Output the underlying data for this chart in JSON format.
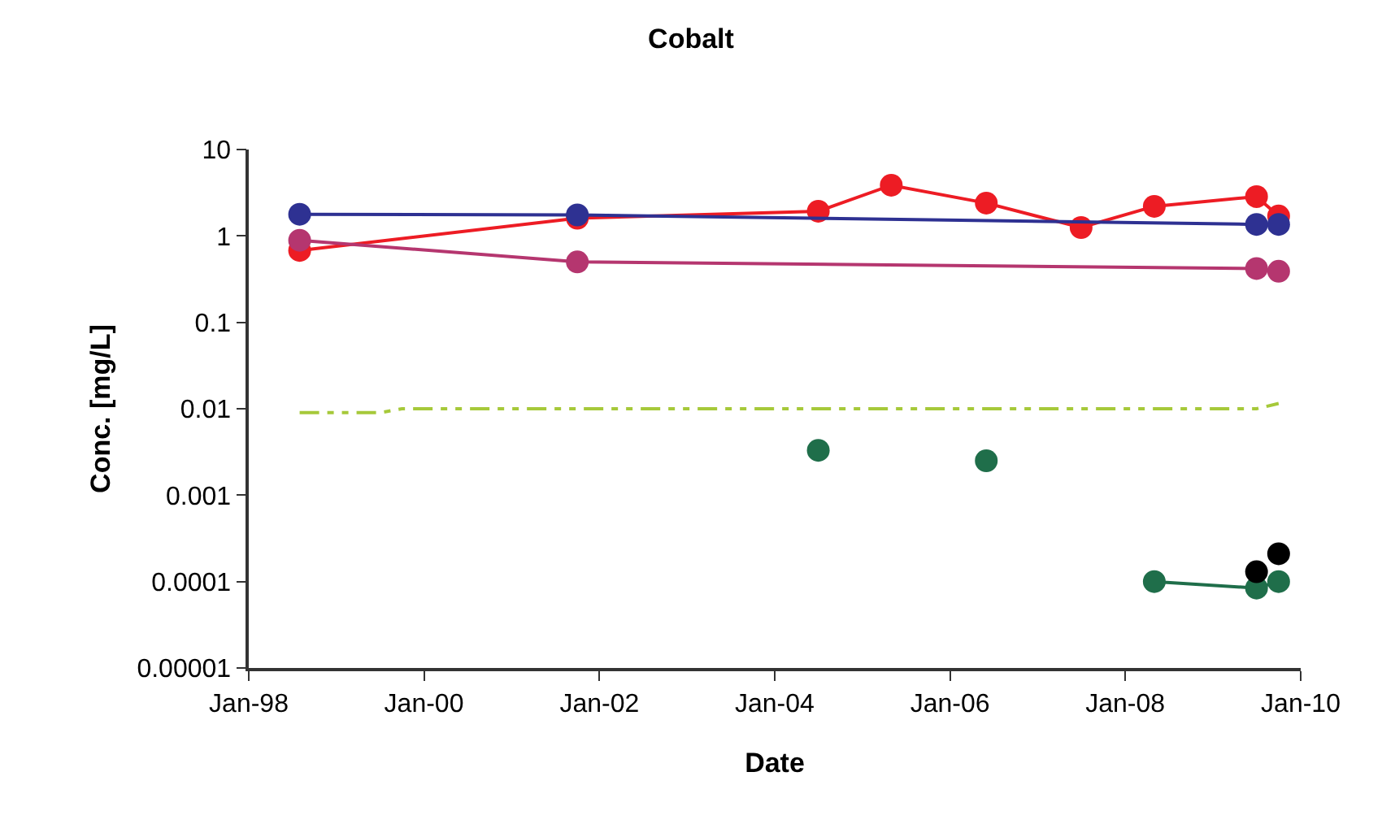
{
  "chart_data": {
    "type": "line",
    "title": "Cobalt",
    "xlabel": "Date",
    "ylabel": "Conc. [mg/L]",
    "log": "y",
    "marker": "circle",
    "xlim": [
      "1998-01-01",
      "2010-01-01"
    ],
    "xticks": [
      {
        "value": "1998-01-01",
        "label": "Jan-98"
      },
      {
        "value": "2000-01-01",
        "label": "Jan-00"
      },
      {
        "value": "2002-01-01",
        "label": "Jan-02"
      },
      {
        "value": "2004-01-01",
        "label": "Jan-04"
      },
      {
        "value": "2006-01-01",
        "label": "Jan-06"
      },
      {
        "value": "2008-01-01",
        "label": "Jan-08"
      },
      {
        "value": "2010-01-01",
        "label": "Jan-10"
      }
    ],
    "ylim": [
      1e-05,
      10
    ],
    "yticks": [
      {
        "value": 10,
        "label": "10"
      },
      {
        "value": 1,
        "label": "1"
      },
      {
        "value": 0.1,
        "label": "0.1"
      },
      {
        "value": 0.01,
        "label": "0.01"
      },
      {
        "value": 0.001,
        "label": "0.001"
      },
      {
        "value": 0.0001,
        "label": "0.0001"
      },
      {
        "value": 1e-05,
        "label": "0.00001"
      }
    ],
    "series": [
      {
        "color": "#ed1c24",
        "x": [
          "1998-08",
          "2001-10",
          "2004-07",
          "2005-05",
          "2006-06",
          "2007-07",
          "2008-05",
          "2009-07",
          "2009-10"
        ],
        "values": [
          0.68,
          1.6,
          1.93,
          3.86,
          2.4,
          1.25,
          2.2,
          2.85,
          1.7
        ]
      },
      {
        "color": "#2e3192",
        "x": [
          "1998-08",
          "2001-10",
          "2009-07",
          "2009-10"
        ],
        "values": [
          1.78,
          1.75,
          1.36,
          1.36
        ]
      },
      {
        "color": "#b5366f",
        "x": [
          "1998-08",
          "2001-10",
          "2009-07",
          "2009-10"
        ],
        "values": [
          0.89,
          0.5,
          0.42,
          0.39
        ]
      },
      {
        "color": "#a6c93a",
        "marker": "none",
        "line_style": "dashed",
        "x": [
          "1998-08",
          "1999-07",
          "1999-10",
          "2009-07",
          "2009-10"
        ],
        "values": [
          0.009,
          0.009,
          0.01,
          0.01,
          0.0115
        ]
      },
      {
        "type": "scatter",
        "color": "#1f6e4a",
        "x": [
          "2004-07",
          "2006-06"
        ],
        "values": [
          0.0033,
          0.0025
        ]
      },
      {
        "color": "#1f6e4a",
        "x": [
          "2008-05",
          "2009-07",
          "2009-10"
        ],
        "values": [
          0.0001,
          8.4e-05,
          0.0001
        ]
      },
      {
        "type": "scatter",
        "color": "#000000",
        "x": [
          "2009-07",
          "2009-10"
        ],
        "values": [
          0.00013,
          0.00021
        ]
      }
    ]
  }
}
